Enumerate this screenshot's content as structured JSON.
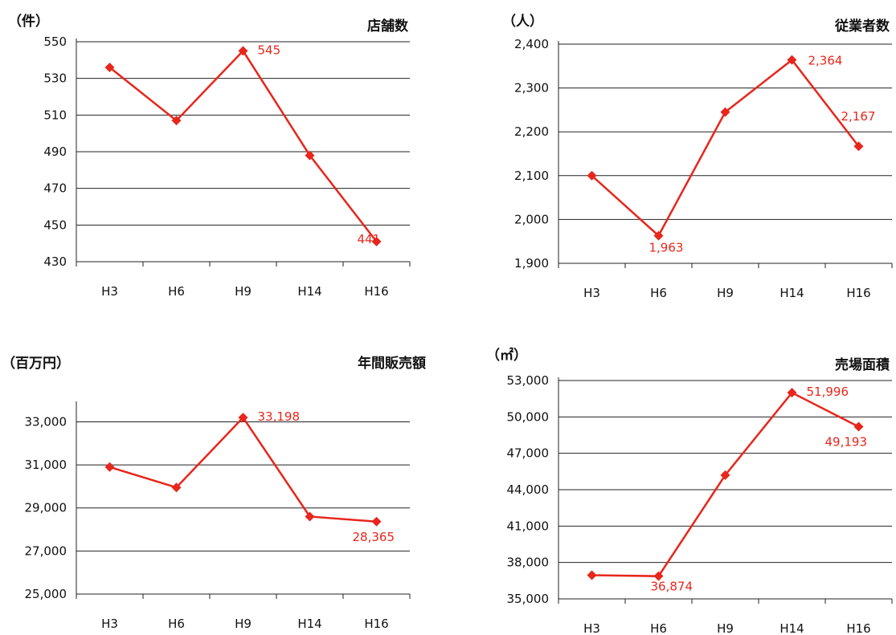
{
  "chart_data": [
    {
      "type": "line",
      "title": "店舗数",
      "unit": "（件）",
      "categories": [
        "H3",
        "H6",
        "H9",
        "H14",
        "H16"
      ],
      "values": [
        536,
        507,
        545,
        488,
        441
      ],
      "data_labels": [
        "",
        "",
        "545",
        "",
        "441"
      ],
      "yticks": [
        "550",
        "530",
        "510",
        "490",
        "470",
        "450",
        "430"
      ],
      "ylim": [
        430,
        550
      ],
      "grid": true,
      "line_color": "#e8261c"
    },
    {
      "type": "line",
      "title": "従業者数",
      "unit": "（人）",
      "categories": [
        "H3",
        "H6",
        "H9",
        "H14",
        "H16"
      ],
      "values": [
        2100,
        1963,
        2245,
        2364,
        2167
      ],
      "data_labels": [
        "",
        "1,963",
        "",
        "2,364",
        "2,167"
      ],
      "yticks": [
        "2,400",
        "2,300",
        "2,200",
        "2,100",
        "2,000",
        "1,900"
      ],
      "ylim": [
        1900,
        2400
      ],
      "grid": true,
      "line_color": "#e8261c"
    },
    {
      "type": "line",
      "title": "年間販売額",
      "unit": "（百万円）",
      "categories": [
        "H3",
        "H6",
        "H9",
        "H14",
        "H16"
      ],
      "values": [
        30900,
        29950,
        33198,
        28600,
        28365
      ],
      "data_labels": [
        "",
        "",
        "33,198",
        "",
        "28,365"
      ],
      "yticks": [
        "33,000",
        "31,000",
        "29,000",
        "27,000",
        "25,000"
      ],
      "ylim": [
        25000,
        33800
      ],
      "grid": true,
      "line_color": "#e8261c"
    },
    {
      "type": "line",
      "title": "売場面積",
      "unit": "（㎡）",
      "categories": [
        "H3",
        "H6",
        "H9",
        "H14",
        "H16"
      ],
      "values": [
        36950,
        36874,
        45200,
        51996,
        49193
      ],
      "data_labels": [
        "",
        "36,874",
        "",
        "51,996",
        "49,193"
      ],
      "yticks": [
        "53,000",
        "50,000",
        "47,000",
        "44,000",
        "41,000",
        "38,000",
        "35,000"
      ],
      "ylim": [
        35000,
        53000
      ],
      "grid": true,
      "line_color": "#e8261c"
    }
  ]
}
